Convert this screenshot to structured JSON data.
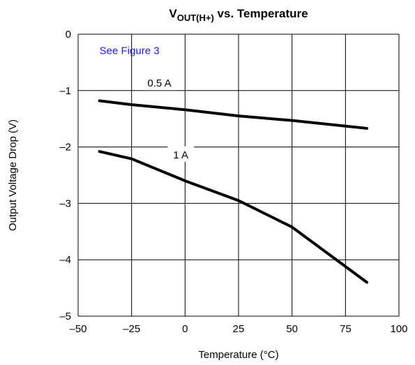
{
  "chart_data": {
    "type": "line",
    "title": {
      "main": "V",
      "subscript": "OUT(H+)",
      "rest": " vs. Temperature"
    },
    "xlabel": "Temperature (°C)",
    "ylabel": "Output Voltage Drop (V)",
    "xlim": [
      -50,
      100
    ],
    "ylim": [
      -5,
      0
    ],
    "xticks": [
      -50,
      -25,
      0,
      25,
      50,
      75,
      100
    ],
    "xtick_labels": [
      "–50",
      "–25",
      "0",
      "25",
      "50",
      "75",
      "100"
    ],
    "yticks": [
      0,
      -1,
      -2,
      -3,
      -4,
      -5
    ],
    "ytick_labels": [
      "0",
      "–1",
      "–2",
      "–3",
      "–4",
      "–5"
    ],
    "grid": true,
    "annotations": [
      {
        "text": "See Figure 3",
        "x": -40,
        "y": -0.35,
        "color": "#1a1aff"
      }
    ],
    "series": [
      {
        "name": "0.5 A",
        "color": "#000000",
        "label_x": -12,
        "label_y": -0.93,
        "x": [
          -40,
          -25,
          0,
          25,
          50,
          85
        ],
        "y": [
          -1.18,
          -1.25,
          -1.34,
          -1.45,
          -1.53,
          -1.67
        ]
      },
      {
        "name": "1 A",
        "color": "#000000",
        "label_x": -2,
        "label_y": -2.2,
        "x": [
          -40,
          -25,
          0,
          25,
          50,
          85
        ],
        "y": [
          -2.08,
          -2.21,
          -2.6,
          -2.95,
          -3.42,
          -4.4
        ]
      }
    ]
  }
}
